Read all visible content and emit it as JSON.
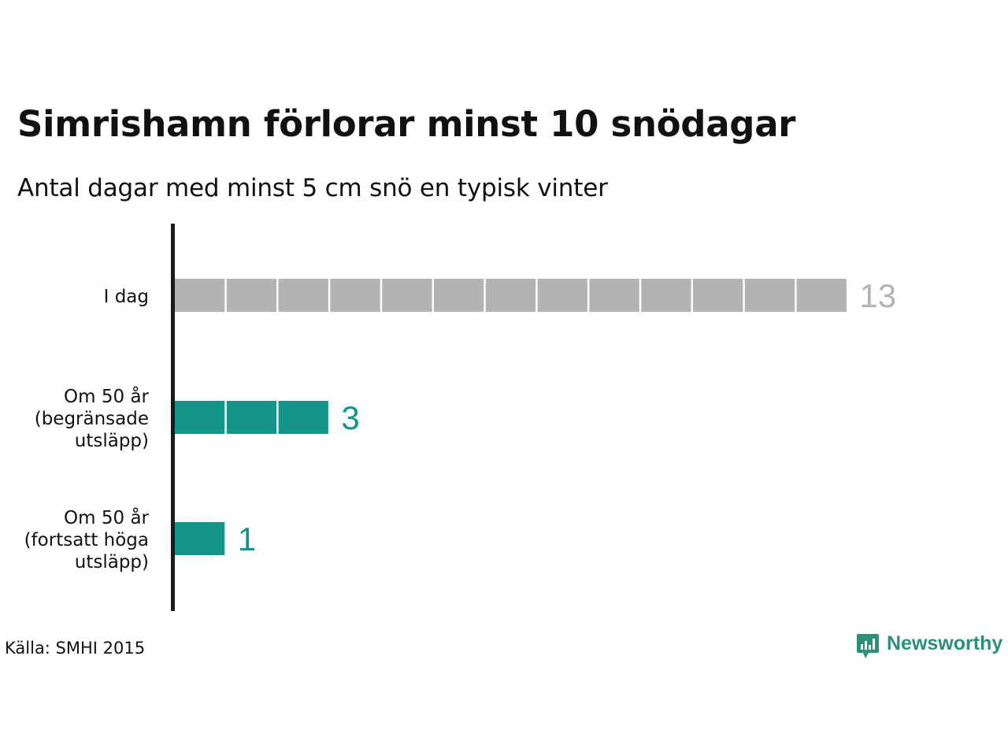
{
  "title": "Simrishamn förlorar minst 10 snödagar",
  "subtitle": "Antal dagar med minst 5 cm snö en typisk vinter",
  "source": "Källa: SMHI 2015",
  "brand": {
    "name": "Newsworthy",
    "icon": "newsworthy-logo-icon",
    "color": "#2c8f7a"
  },
  "chart_data": {
    "type": "bar",
    "orientation": "horizontal",
    "style": "unit-blocks",
    "title": "Simrishamn förlorar minst 10 snödagar",
    "subtitle": "Antal dagar med minst 5 cm snö en typisk vinter",
    "xlabel": "",
    "ylabel": "",
    "categories": [
      [
        "I dag"
      ],
      [
        "Om 50 år",
        "(begränsade",
        "utsläpp)"
      ],
      [
        "Om 50 år",
        "(fortsatt höga",
        "utsläpp)"
      ]
    ],
    "values": [
      13,
      3,
      1
    ],
    "colors": [
      "#b3b3b3",
      "#14958a",
      "#14958a"
    ],
    "value_label_colors": [
      "#b3b3b3",
      "#14958a",
      "#14958a"
    ],
    "grid": false,
    "legend": "none"
  }
}
